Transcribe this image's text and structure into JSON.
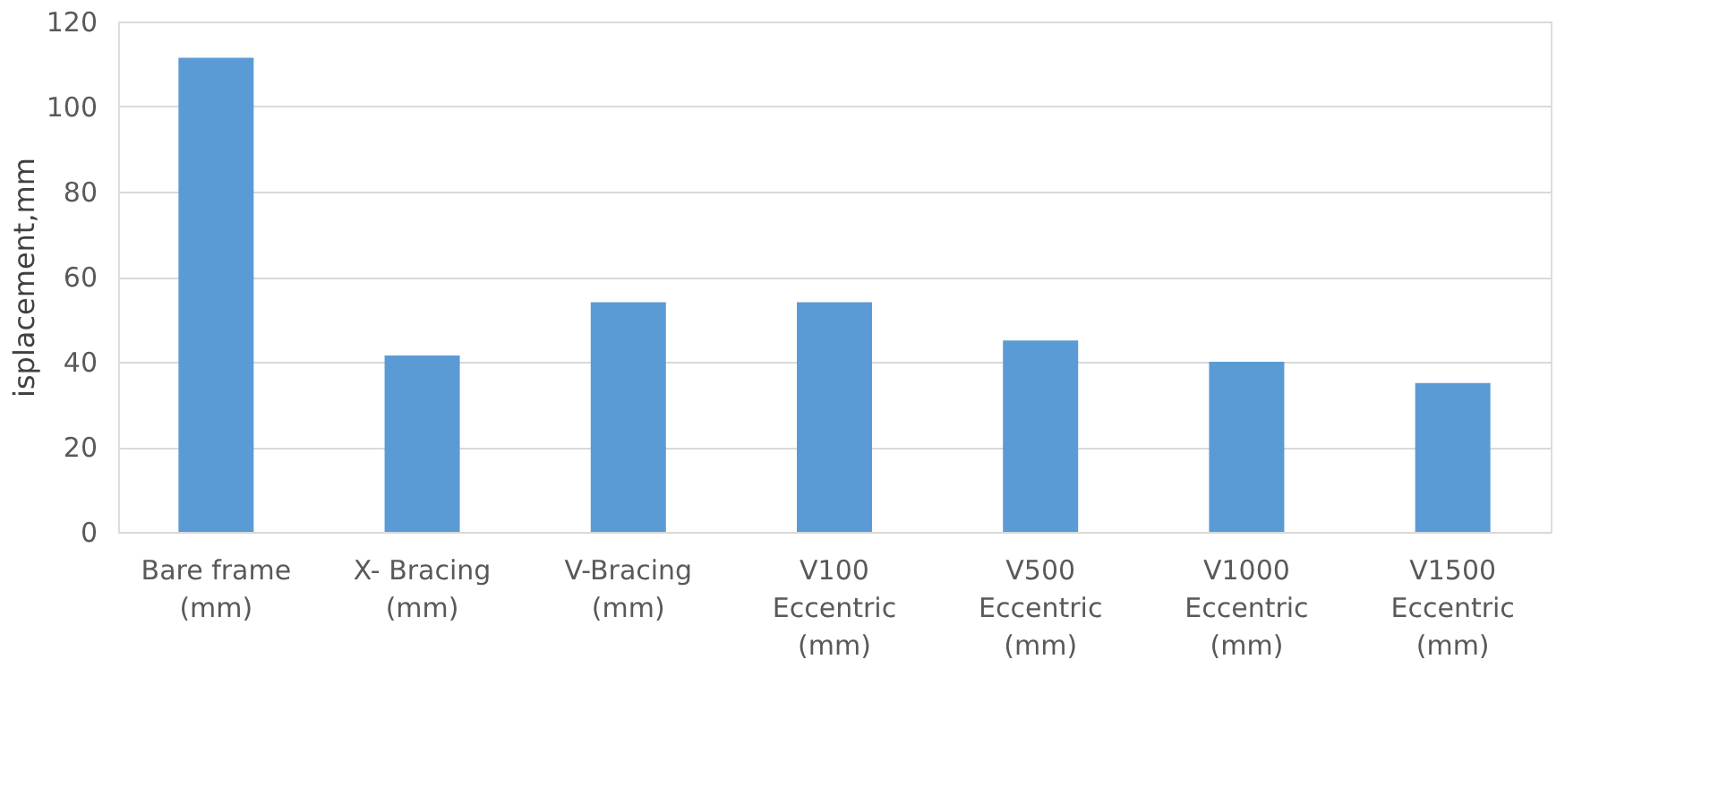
{
  "chart_data": {
    "type": "bar",
    "ylabel": "isplacement,mm",
    "categories": [
      "Bare frame\n(mm)",
      "X- Bracing\n(mm)",
      "V-Bracing\n(mm)",
      "V100\nEccentric\n(mm)",
      "V500\nEccentric\n(mm)",
      "V1000\nEccentric\n(mm)",
      "V1500\nEccentric\n(mm)"
    ],
    "values": [
      111.5,
      41.5,
      54,
      54,
      45,
      40,
      35
    ],
    "color": "#5b9bd5",
    "ylim": [
      0,
      120
    ],
    "yticks": [
      0,
      20,
      40,
      60,
      80,
      100,
      120
    ],
    "grid": "y"
  }
}
